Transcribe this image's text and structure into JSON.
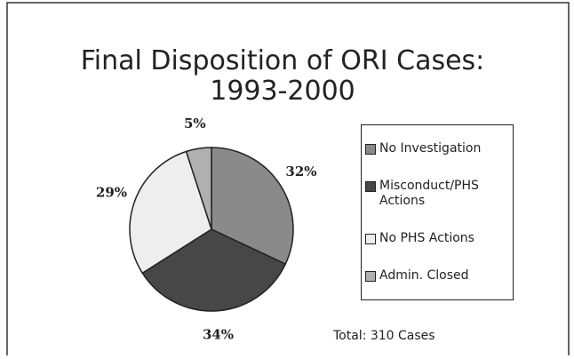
{
  "chart_data": {
    "type": "pie",
    "title": [
      "Final Disposition of ORI Cases:",
      "1993-2000"
    ],
    "categories": [
      "No Investigation",
      "Misconduct/PHS Actions",
      "No PHS Actions",
      "Admin. Closed"
    ],
    "values": [
      32,
      34,
      29,
      5
    ],
    "value_labels": [
      "32%",
      "34%",
      "29%",
      "5%"
    ],
    "colors": [
      "#8a8a8a",
      "#474747",
      "#eeeeee",
      "#b0b0b0"
    ],
    "annotation": "Total:  310 Cases"
  }
}
